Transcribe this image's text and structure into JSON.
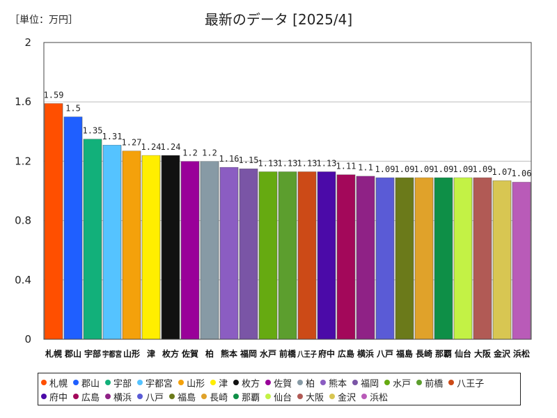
{
  "unit_label": "［単位：万円］",
  "chart_data": {
    "type": "bar",
    "title": "最新のデータ [2025/4]",
    "xlabel": "",
    "ylabel": "",
    "ylim": [
      0,
      2
    ],
    "yticks": [
      "0",
      "0.4",
      "0.8",
      "1.2",
      "1.6",
      "2"
    ],
    "ytick_values": [
      0,
      0.4,
      0.8,
      1.2,
      1.6,
      2
    ],
    "grid": true,
    "categories": [
      "札幌",
      "郡山",
      "宇部",
      "宇都宮",
      "山形",
      "津",
      "枚方",
      "佐賀",
      "柏",
      "熊本",
      "福岡",
      "水戸",
      "前橋",
      "八王子",
      "府中",
      "広島",
      "横浜",
      "八戸",
      "福島",
      "長崎",
      "那覇",
      "仙台",
      "大阪",
      "金沢",
      "浜松"
    ],
    "values": [
      1.59,
      1.5,
      1.35,
      1.31,
      1.27,
      1.24,
      1.24,
      1.2,
      1.2,
      1.16,
      1.15,
      1.13,
      1.13,
      1.13,
      1.13,
      1.11,
      1.1,
      1.09,
      1.09,
      1.09,
      1.09,
      1.09,
      1.09,
      1.07,
      1.06
    ],
    "value_labels": [
      "1.59",
      "1.5",
      "1.35",
      "1.31",
      "1.27",
      "1.24",
      "1.24",
      "1.2",
      "1.2",
      "1.16",
      "1.15",
      "1.13",
      "1.13",
      "1.13",
      "1.13",
      "1.11",
      "1.1",
      "1.09",
      "1.09",
      "1.09",
      "1.09",
      "1.09",
      "1.09",
      "1.07",
      "1.06"
    ],
    "colors": [
      "#ff4f00",
      "#1f5fff",
      "#12b07a",
      "#55c3ff",
      "#f4a10b",
      "#ffee00",
      "#111111",
      "#990099",
      "#879aa5",
      "#8b5dc2",
      "#7a55a6",
      "#66aa11",
      "#5c9e2e",
      "#cc4a17",
      "#4b0aa8",
      "#a3085a",
      "#8f2286",
      "#5a5bd6",
      "#6b7a1a",
      "#e0a22a",
      "#0e8f47",
      "#c3f245",
      "#b15a55",
      "#d8c652",
      "#b95bb8"
    ]
  }
}
